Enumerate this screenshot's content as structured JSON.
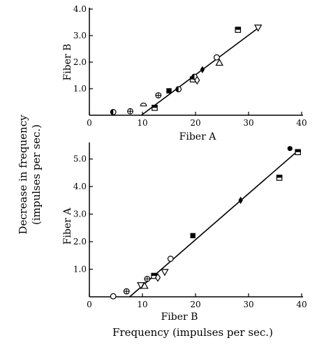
{
  "figure": {
    "shared_ylabel_line1": "Decrease in frequency",
    "shared_ylabel_line2": "(impulses per sec.)",
    "shared_xlabel": "Frequency (impulses per sec.)"
  },
  "chart_data": [
    {
      "type": "scatter",
      "title": "",
      "xlabel": "Fiber A",
      "ylabel": "Fiber B",
      "xlim": [
        0,
        40
      ],
      "ylim": [
        0,
        4.0
      ],
      "xticks": [
        "0",
        "10",
        "20",
        "30",
        "40"
      ],
      "yticks": [
        "1.0",
        "2.0",
        "3.0",
        "4.0"
      ],
      "grid": false,
      "points": [
        {
          "x": 4.5,
          "y": 0.12,
          "marker": "circle-half"
        },
        {
          "x": 7.7,
          "y": 0.15,
          "marker": "circle-cross"
        },
        {
          "x": 10.2,
          "y": 0.35,
          "marker": "semicircle-open"
        },
        {
          "x": 12.3,
          "y": 0.28,
          "marker": "square-half"
        },
        {
          "x": 13.0,
          "y": 0.75,
          "marker": "circle-cross"
        },
        {
          "x": 15.0,
          "y": 0.92,
          "marker": "square-filled"
        },
        {
          "x": 16.8,
          "y": 0.98,
          "marker": "circle-half"
        },
        {
          "x": 19.5,
          "y": 1.35,
          "marker": "square-half"
        },
        {
          "x": 19.8,
          "y": 1.45,
          "marker": "circle-half"
        },
        {
          "x": 20.3,
          "y": 1.32,
          "marker": "diamond-open"
        },
        {
          "x": 21.3,
          "y": 1.72,
          "marker": "diamond-filled"
        },
        {
          "x": 24.0,
          "y": 2.18,
          "marker": "circle-open"
        },
        {
          "x": 24.5,
          "y": 1.98,
          "marker": "triangle-up-open"
        },
        {
          "x": 28.0,
          "y": 3.22,
          "marker": "square-half"
        },
        {
          "x": 31.8,
          "y": 3.3,
          "marker": "triangle-down-open"
        }
      ],
      "fit_line": {
        "x": [
          9.8,
          31.9
        ],
        "y": [
          0,
          3.3
        ]
      }
    },
    {
      "type": "scatter",
      "title": "",
      "xlabel": "Fiber B",
      "ylabel": "Fiber A",
      "xlim": [
        0,
        40
      ],
      "ylim": [
        0,
        5.6
      ],
      "xticks": [
        "0",
        "10",
        "20",
        "30",
        "40"
      ],
      "yticks": [
        "1.0",
        "2.0",
        "3.0",
        "4.0",
        "5.0"
      ],
      "grid": false,
      "points": [
        {
          "x": 4.5,
          "y": 0.02,
          "marker": "circle-open"
        },
        {
          "x": 7.0,
          "y": 0.2,
          "marker": "circle-cross"
        },
        {
          "x": 9.7,
          "y": 0.42,
          "marker": "triangle-down-open"
        },
        {
          "x": 10.4,
          "y": 0.4,
          "marker": "triangle-up-open"
        },
        {
          "x": 10.9,
          "y": 0.65,
          "marker": "circle-cross"
        },
        {
          "x": 12.2,
          "y": 0.76,
          "marker": "square-half"
        },
        {
          "x": 12.9,
          "y": 0.7,
          "marker": "diamond-open"
        },
        {
          "x": 14.2,
          "y": 0.9,
          "marker": "triangle-down-open"
        },
        {
          "x": 15.3,
          "y": 1.38,
          "marker": "circle-open"
        },
        {
          "x": 19.5,
          "y": 2.22,
          "marker": "square-filled"
        },
        {
          "x": 28.5,
          "y": 3.5,
          "marker": "diamond-filled"
        },
        {
          "x": 35.8,
          "y": 4.32,
          "marker": "square-half"
        },
        {
          "x": 37.8,
          "y": 5.38,
          "marker": "circle-filled"
        },
        {
          "x": 39.3,
          "y": 5.25,
          "marker": "square-half"
        }
      ],
      "fit_line": {
        "x": [
          7.6,
          39.3
        ],
        "y": [
          0,
          5.3
        ]
      }
    }
  ]
}
